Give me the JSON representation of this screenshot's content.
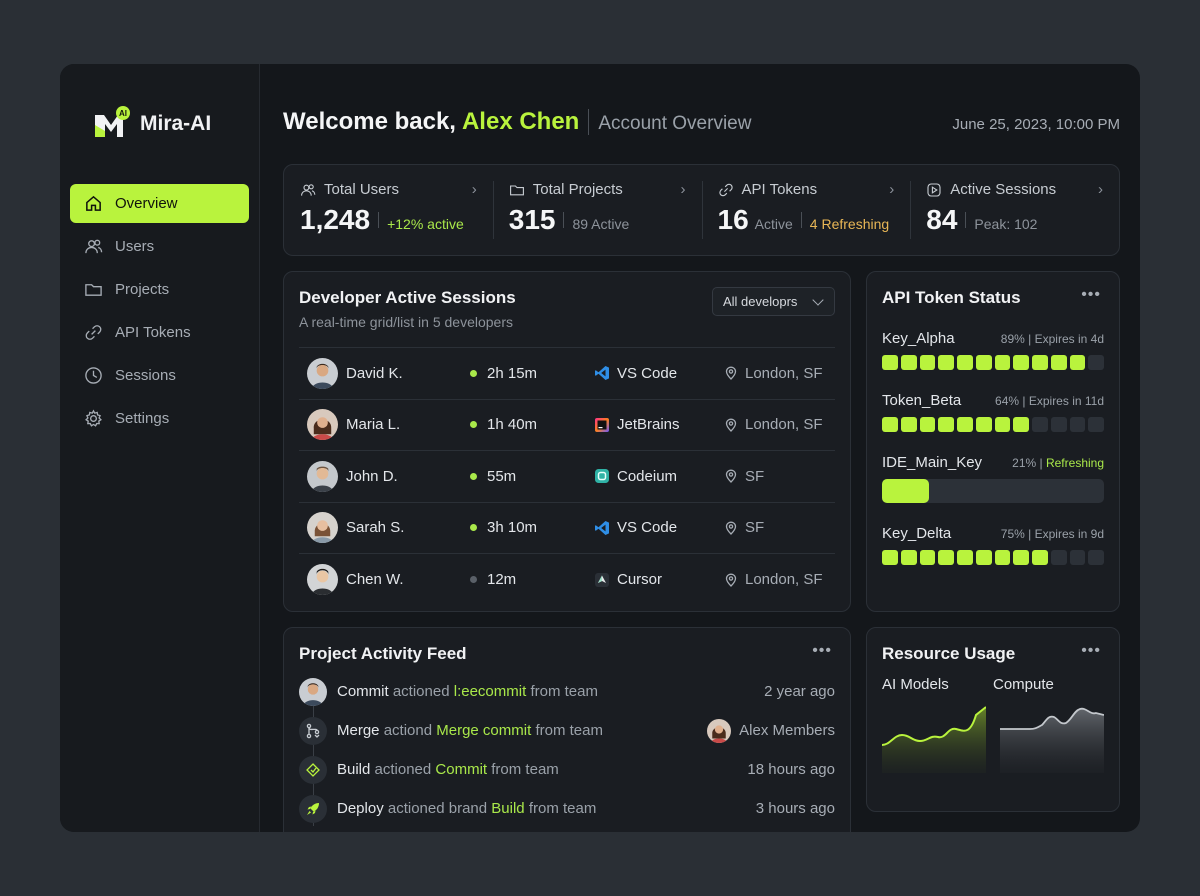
{
  "brand": {
    "name": "Mira-AI",
    "badge": "AI"
  },
  "nav": [
    {
      "label": "Overview",
      "icon": "home-icon",
      "active": true
    },
    {
      "label": "Users",
      "icon": "users-icon"
    },
    {
      "label": "Projects",
      "icon": "folder-icon"
    },
    {
      "label": "API Tokens",
      "icon": "link-icon"
    },
    {
      "label": "Sessions",
      "icon": "clock-icon"
    },
    {
      "label": "Settings",
      "icon": "gear-icon"
    }
  ],
  "header": {
    "welcome": "Welcome back,",
    "user": "Alex Chen",
    "subtitle": "Account Overview",
    "date": "June 25, 2023, 10:00 PM"
  },
  "stats": [
    {
      "title": "Total Users",
      "value": "1,248",
      "note": "+12% active"
    },
    {
      "title": "Total Projects",
      "value": "315",
      "note": "89 Active"
    },
    {
      "title": "API Tokens",
      "value": "16",
      "note": "Active",
      "note2": "4 Refreshing"
    },
    {
      "title": "Active Sessions",
      "value": "84",
      "note": "Peak: 102"
    }
  ],
  "sessions": {
    "title": "Developer Active Sessions",
    "subtitle": "A real-time grid/list in 5 developers",
    "filter": "All developrs",
    "rows": [
      {
        "name": "David K.",
        "time": "2h 15m",
        "ide": "VS Code",
        "location": "London, SF",
        "active": true
      },
      {
        "name": "Maria L.",
        "time": "1h 40m",
        "ide": "JetBrains",
        "location": "London, SF",
        "active": true
      },
      {
        "name": "John D.",
        "time": "55m",
        "ide": "Codeium",
        "location": "SF",
        "active": true
      },
      {
        "name": "Sarah S.",
        "time": "3h 10m",
        "ide": "VS Code",
        "location": "SF",
        "active": true
      },
      {
        "name": "Chen W.",
        "time": "12m",
        "ide": "Cursor",
        "location": "London, SF",
        "active": false
      }
    ]
  },
  "tokens": {
    "title": "API Token Status",
    "items": [
      {
        "name": "Key_Alpha",
        "percent": "89%",
        "status": "Expires in 4d",
        "fraction": 0.89
      },
      {
        "name": "Token_Beta",
        "percent": "64%",
        "status": "Expires in 11d",
        "fraction": 0.64
      },
      {
        "name": "IDE_Main_Key",
        "percent": "21%",
        "status": "Refreshing",
        "fraction": 0.21
      },
      {
        "name": "Key_Delta",
        "percent": "75%",
        "status": "Expires in 9d",
        "fraction": 0.75
      }
    ]
  },
  "feed": {
    "title": "Project Activity Feed",
    "items": [
      {
        "action": "Commit",
        "verb": "actioned",
        "target": "l:eecommit",
        "tail": "from team",
        "right": "2 year ago",
        "icon": "avatar"
      },
      {
        "action": "Merge",
        "verb": "actiond",
        "target": "Merge commit",
        "tail": "from team",
        "right": "Alex Members",
        "icon": "merge-icon"
      },
      {
        "action": "Build",
        "verb": "actioned",
        "target": "Commit",
        "tail": "from team",
        "right": "18 hours ago",
        "icon": "build-icon"
      },
      {
        "action": "Deploy",
        "verb": "actioned brand",
        "target": "Build",
        "tail": "from team",
        "right": "3 hours ago",
        "icon": "rocket-icon"
      }
    ]
  },
  "resources": {
    "title": "Resource Usage",
    "labels": [
      "AI Models",
      "Compute"
    ]
  },
  "colors": {
    "accent": "#b9f33d",
    "amber": "#e9b756",
    "bg": "#14171b",
    "card": "#1a1d22"
  }
}
